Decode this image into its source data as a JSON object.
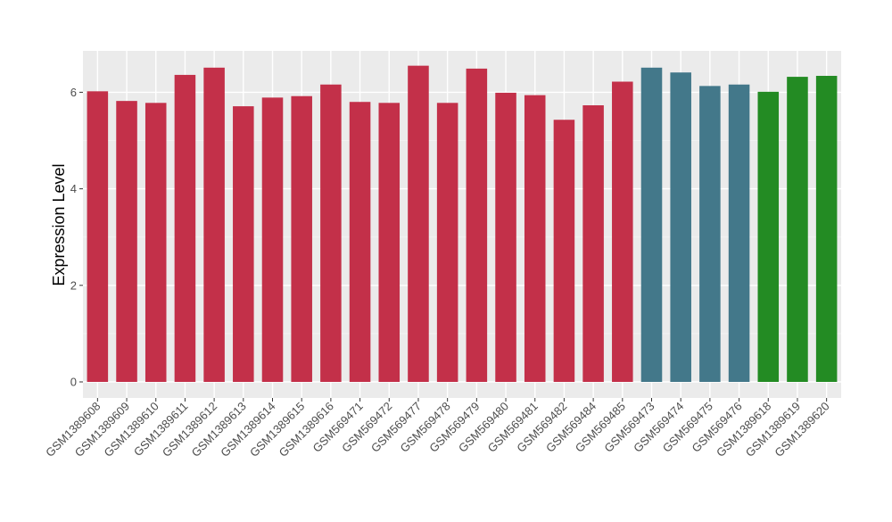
{
  "chart_data": {
    "type": "bar",
    "title": "",
    "xlabel": "",
    "ylabel": "Expression Level",
    "ylim": [
      0,
      6.85
    ],
    "yticks": [
      0,
      2,
      4,
      6
    ],
    "grid": true,
    "legend": "none",
    "categories": [
      "GSM1389608",
      "GSM1389609",
      "GSM1389610",
      "GSM1389611",
      "GSM1389612",
      "GSM1389613",
      "GSM1389614",
      "GSM1389615",
      "GSM1389616",
      "GSM569471",
      "GSM569472",
      "GSM569477",
      "GSM569478",
      "GSM569479",
      "GSM569480",
      "GSM569481",
      "GSM569482",
      "GSM569484",
      "GSM569485",
      "GSM569473",
      "GSM569474",
      "GSM569475",
      "GSM569476",
      "GSM1389618",
      "GSM1389619",
      "GSM1389620"
    ],
    "values": [
      6.02,
      5.82,
      5.78,
      6.36,
      6.51,
      5.71,
      5.89,
      5.92,
      6.16,
      5.8,
      5.78,
      6.55,
      5.78,
      6.49,
      5.99,
      5.94,
      5.43,
      5.73,
      6.22,
      6.51,
      6.41,
      6.13,
      6.16,
      6.01,
      6.32,
      6.34
    ],
    "colors": [
      "#c33049",
      "#c33049",
      "#c33049",
      "#c33049",
      "#c33049",
      "#c33049",
      "#c33049",
      "#c33049",
      "#c33049",
      "#c33049",
      "#c33049",
      "#c33049",
      "#c33049",
      "#c33049",
      "#c33049",
      "#c33049",
      "#c33049",
      "#c33049",
      "#c33049",
      "#43788a",
      "#43788a",
      "#43788a",
      "#43788a",
      "#238b23",
      "#238b23",
      "#238b23"
    ]
  }
}
